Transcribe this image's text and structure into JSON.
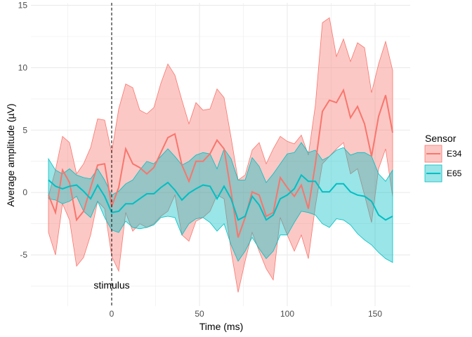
{
  "chart_data": {
    "type": "line",
    "xlabel": "Time (ms)",
    "ylabel": "Average amplitude (µV)",
    "xlim": [
      -46,
      170
    ],
    "ylim": [
      -9.1,
      15.2
    ],
    "x_ticks": [
      0,
      50,
      100,
      150
    ],
    "y_ticks": [
      -5,
      0,
      5,
      10,
      15
    ],
    "grid": true,
    "legend": {
      "title": "Sensor",
      "placement": "right"
    },
    "annotation": {
      "x": 0,
      "label": "stimulus",
      "style": "dashed vertical line"
    },
    "x": [
      -36,
      -32,
      -28,
      -24,
      -20,
      -16,
      -12,
      -8,
      -4,
      0,
      4,
      8,
      12,
      16,
      20,
      24,
      28,
      32,
      36,
      40,
      44,
      48,
      52,
      56,
      60,
      64,
      68,
      72,
      76,
      80,
      84,
      88,
      92,
      96,
      100,
      104,
      108,
      112,
      116,
      120,
      124,
      128,
      132,
      136,
      140,
      144,
      148,
      152,
      156,
      160
    ],
    "series": [
      {
        "name": "E34",
        "color": "#F8766D",
        "mean": [
          -0.2,
          -1.6,
          1.8,
          0.8,
          -2.2,
          -1.5,
          0.4,
          2.2,
          2.3,
          -1.1,
          0.4,
          3.5,
          2.3,
          2.0,
          1.5,
          2.0,
          3.2,
          4.4,
          4.7,
          2.2,
          0.9,
          2.5,
          2.5,
          3.1,
          4.2,
          3.5,
          0.05,
          -3.6,
          -2.0,
          0.05,
          -0.2,
          -1.9,
          -1.6,
          1.2,
          0.4,
          -0.3,
          0.6,
          -1.3,
          2.3,
          6.5,
          7.4,
          7.2,
          8.2,
          6.0,
          6.9,
          5.5,
          2.9,
          6.1,
          7.8,
          4.8
        ],
        "upper": [
          -0.3,
          1.8,
          4.5,
          4.0,
          1.5,
          2.3,
          3.6,
          5.9,
          5.8,
          3.2,
          6.7,
          8.7,
          8.4,
          6.6,
          6.3,
          6.8,
          8.75,
          10.3,
          9.4,
          7.4,
          5.5,
          7.2,
          6.6,
          6.7,
          8.3,
          7.6,
          4.4,
          1.0,
          1.4,
          3.4,
          4.0,
          2.3,
          3.5,
          4.5,
          4.1,
          3.9,
          4.6,
          3.0,
          7.0,
          13.6,
          14.0,
          10.9,
          12.3,
          10.5,
          12.0,
          11.6,
          8.0,
          10.3,
          12.1,
          9.8
        ],
        "lower": [
          -3.2,
          -5.0,
          -0.9,
          -2.2,
          -5.9,
          -5.2,
          -3.4,
          -0.7,
          -1.3,
          -5.1,
          -6.3,
          -1.6,
          -3.1,
          -2.5,
          -2.8,
          -2.5,
          -1.9,
          -1.5,
          -0.2,
          -3.4,
          -3.9,
          -2.3,
          -2.0,
          -1.5,
          -0.2,
          -0.5,
          -4.7,
          -8.0,
          -5.5,
          -3.2,
          -4.7,
          -6.1,
          -7.0,
          -2.0,
          -3.4,
          -4.7,
          -3.4,
          -5.3,
          -1.1,
          2.3,
          2.9,
          3.5,
          4.0,
          1.5,
          1.9,
          -0.2,
          -2.4,
          1.9,
          3.5,
          -0.3
        ]
      },
      {
        "name": "E65",
        "color": "#00BFC4",
        "mean": [
          1.0,
          0.5,
          0.3,
          0.5,
          0.6,
          0.1,
          -0.5,
          0.6,
          -0.3,
          -1.6,
          -1.5,
          -0.9,
          -0.9,
          -0.5,
          -0.1,
          -0.1,
          0.4,
          0.8,
          0.2,
          -0.6,
          -0.05,
          0.3,
          0.6,
          0.5,
          -0.5,
          0.5,
          -0.5,
          -2.2,
          -1.9,
          -0.3,
          -1.0,
          -2.2,
          -1.8,
          -0.5,
          -0.2,
          0.3,
          1.4,
          0.9,
          0.9,
          0.05,
          0.05,
          0.7,
          0.7,
          0.05,
          -0.2,
          -0.3,
          -0.7,
          -1.8,
          -2.2,
          -1.9
        ],
        "upper": [
          2.7,
          1.8,
          1.5,
          1.9,
          1.4,
          1.2,
          1.1,
          1.9,
          1.0,
          -0.2,
          0.1,
          0.7,
          1.0,
          1.8,
          2.5,
          2.3,
          2.9,
          3.5,
          2.9,
          2.2,
          2.5,
          3.0,
          3.2,
          3.1,
          1.9,
          3.5,
          2.7,
          1.0,
          1.0,
          2.8,
          2.1,
          0.8,
          1.5,
          2.3,
          3.1,
          3.2,
          4.0,
          3.2,
          3.4,
          2.6,
          2.9,
          3.4,
          3.6,
          3.0,
          3.2,
          3.2,
          2.9,
          1.5,
          0.9,
          1.8
        ],
        "lower": [
          -0.5,
          -0.6,
          -0.9,
          -0.7,
          -0.3,
          -1.5,
          -2.0,
          -0.7,
          -2.0,
          -3.0,
          -3.2,
          -2.3,
          -2.8,
          -2.9,
          -2.8,
          -2.6,
          -2.0,
          -1.9,
          -2.0,
          -3.4,
          -2.5,
          -2.1,
          -2.0,
          -2.4,
          -3.1,
          -2.5,
          -4.2,
          -5.5,
          -4.7,
          -3.6,
          -4.5,
          -5.3,
          -4.7,
          -3.4,
          -3.4,
          -2.4,
          -1.5,
          -1.6,
          -1.8,
          -2.5,
          -2.8,
          -2.1,
          -2.2,
          -2.6,
          -3.3,
          -3.8,
          -4.2,
          -4.8,
          -5.3,
          -5.6
        ]
      }
    ]
  }
}
